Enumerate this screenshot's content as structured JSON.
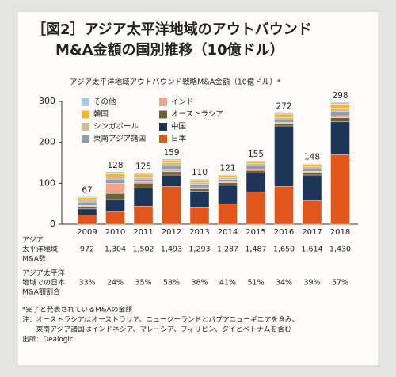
{
  "chart_data": {
    "type": "bar",
    "stacked": true,
    "title": [
      "［図2］アジア太平洋地域のアウトバウンド",
      "M&A金額の国別推移（10億ドル）"
    ],
    "subtitle": "アジア太平洋地域アウトバウンド戦略M&A金額（10億ドル）*",
    "categories": [
      "2009",
      "2010",
      "2011",
      "2012",
      "2013",
      "2014",
      "2015",
      "2016",
      "2017",
      "2018"
    ],
    "series": [
      {
        "name": "その他",
        "color": "#a9c8e6",
        "values": [
          2,
          5,
          3,
          3,
          2,
          2,
          2,
          3,
          2,
          5
        ]
      },
      {
        "name": "韓国",
        "color": "#f2b632",
        "values": [
          5,
          8,
          8,
          6,
          6,
          5,
          5,
          8,
          6,
          10
        ]
      },
      {
        "name": "シンガポール",
        "color": "#cfbd8e",
        "values": [
          6,
          5,
          4,
          8,
          5,
          5,
          6,
          6,
          5,
          8
        ]
      },
      {
        "name": "東南アジア諸国",
        "color": "#8d9db2",
        "values": [
          8,
          10,
          6,
          10,
          8,
          6,
          8,
          6,
          6,
          10
        ]
      },
      {
        "name": "インド",
        "color": "#f0a58a",
        "values": [
          3,
          25,
          4,
          4,
          3,
          2,
          3,
          3,
          3,
          5
        ]
      },
      {
        "name": "オーストラシア",
        "color": "#6b6235",
        "values": [
          6,
          15,
          12,
          8,
          6,
          6,
          6,
          6,
          6,
          10
        ]
      },
      {
        "name": "中国",
        "color": "#1d3557",
        "values": [
          15,
          29,
          44,
          28,
          38,
          45,
          46,
          148,
          62,
          80
        ]
      },
      {
        "name": "日本",
        "color": "#e0561b",
        "values": [
          22,
          31,
          44,
          92,
          42,
          50,
          79,
          92,
          58,
          170
        ]
      }
    ],
    "totals": [
      67,
      128,
      125,
      159,
      110,
      121,
      155,
      272,
      148,
      298
    ],
    "ylim": [
      0,
      300
    ],
    "yticks": [
      0,
      100,
      200,
      300
    ],
    "grid": false
  },
  "table": {
    "rows": [
      {
        "label": [
          "アジア",
          "太平洋地域",
          "M&A数"
        ],
        "values": [
          "972",
          "1,304",
          "1,502",
          "1,493",
          "1,293",
          "1,287",
          "1,487",
          "1,650",
          "1,614",
          "1,430"
        ]
      },
      {
        "label": [
          "アジア太平洋",
          "地域での日本",
          "M&A額割合"
        ],
        "values": [
          "33%",
          "24%",
          "35%",
          "58%",
          "38%",
          "41%",
          "51%",
          "34%",
          "39%",
          "57%"
        ]
      }
    ]
  },
  "notes": [
    "*完了と発表されているM&Aの金額",
    "注：オーストラシアはオーストラリア、ニュージーランドとパプアニューギニアを含み、",
    "　　東南アジア諸国はインドネシア、マレーシア、フィリピン、タイとベトナムを含む",
    "出所：Dealogic"
  ]
}
